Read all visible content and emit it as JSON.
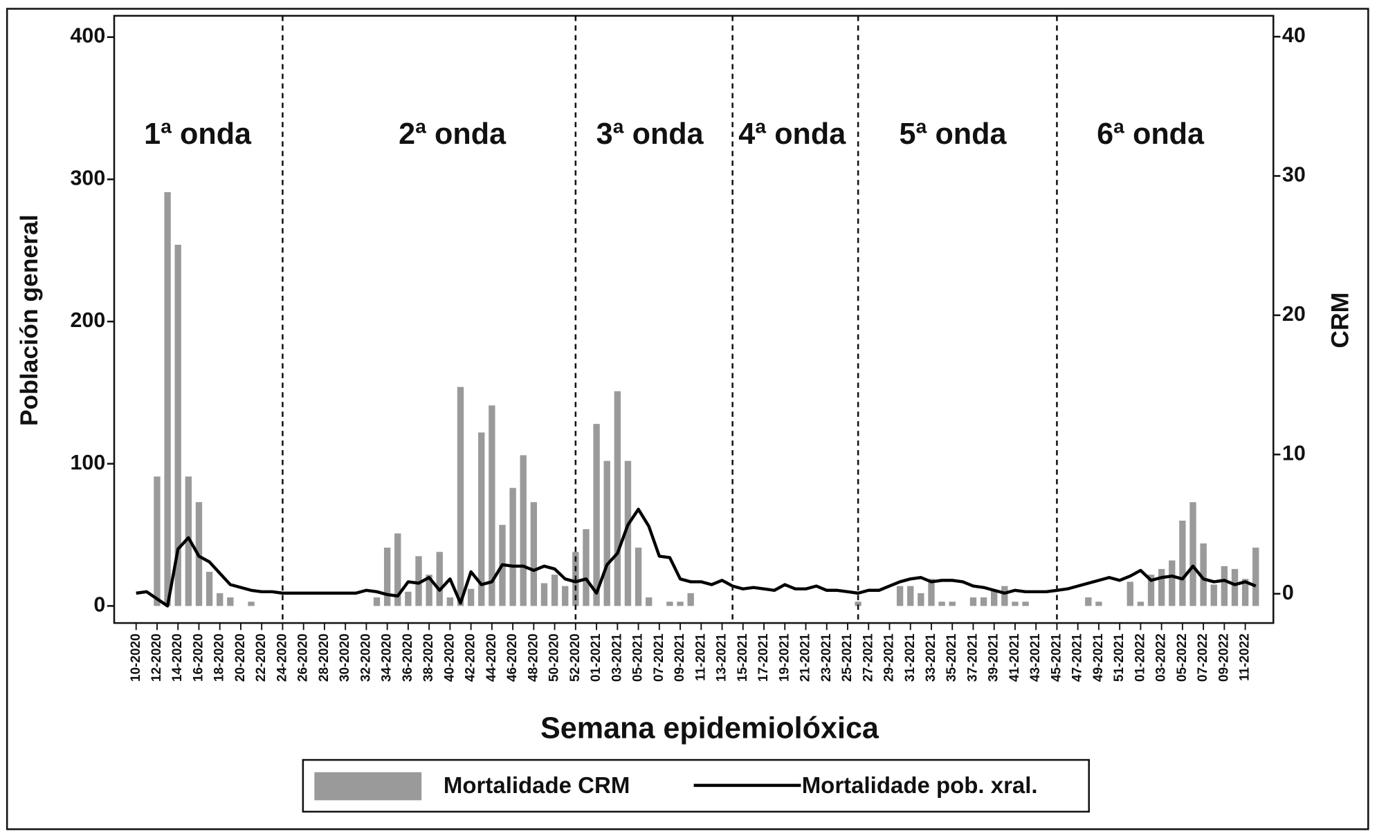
{
  "chart_data": {
    "type": "bar",
    "xlabel": "Semana epidemiolóxica",
    "ylabel": "Población general",
    "y2label": "CRM",
    "categories": [
      "10-2020",
      null,
      "12-2020",
      null,
      "14-2020",
      null,
      "16-2020",
      null,
      "18-2020",
      null,
      "20-2020",
      null,
      "22-2020",
      null,
      "24-2020",
      null,
      "26-2020",
      null,
      "28-2020",
      null,
      "30-2020",
      null,
      "32-2020",
      null,
      "34-2020",
      null,
      "36-2020",
      null,
      "38-2020",
      null,
      "40-2020",
      null,
      "42-2020",
      null,
      "44-2020",
      null,
      "46-2020",
      null,
      "48-2020",
      null,
      "50-2020",
      null,
      "52-2020",
      null,
      "01-2021",
      null,
      "03-2021",
      null,
      "05-2021",
      null,
      "07-2021",
      null,
      "09-2021",
      null,
      "11-2021",
      null,
      "13-2021",
      null,
      "15-2021",
      null,
      "17-2021",
      null,
      "19-2021",
      null,
      "21-2021",
      null,
      "23-2021",
      null,
      "25-2021",
      null,
      "27-2021",
      null,
      "29-2021",
      null,
      "31-2021",
      null,
      "33-2021",
      null,
      "35-2021",
      null,
      "37-2021",
      null,
      "39-2021",
      null,
      "41-2021",
      null,
      "43-2021",
      null,
      "45-2021",
      null,
      "47-2021",
      null,
      "49-2021",
      null,
      "51-2021",
      null,
      "01-2022",
      null,
      "03-2022",
      null,
      "05-2022",
      null,
      "07-2022",
      null,
      "09-2022",
      null,
      "11-2022",
      null
    ],
    "series": [
      {
        "name": "Mortalidade CRM",
        "type": "bar",
        "color": "#9a9a9a",
        "values": [
          0,
          0,
          91,
          291,
          254,
          91,
          73,
          24,
          9,
          6,
          0,
          3,
          0,
          0,
          0,
          0,
          0,
          0,
          0,
          0,
          0,
          0,
          0,
          6,
          41,
          51,
          10,
          35,
          22,
          38,
          6,
          154,
          12,
          122,
          141,
          57,
          83,
          106,
          73,
          16,
          22,
          14,
          38,
          54,
          128,
          102,
          151,
          102,
          41,
          6,
          0,
          3,
          3,
          9,
          0,
          0,
          0,
          0,
          0,
          0,
          0,
          0,
          0,
          0,
          0,
          0,
          0,
          0,
          0,
          3,
          0,
          0,
          0,
          14,
          14,
          9,
          19,
          3,
          3,
          0,
          6,
          6,
          11,
          14,
          3,
          3,
          0,
          0,
          0,
          0,
          0,
          6,
          3,
          0,
          0,
          17,
          3,
          22,
          26,
          32,
          60,
          73,
          44,
          15,
          28,
          26,
          19,
          41
        ]
      },
      {
        "name": "Mortalidade pob. xral.",
        "type": "line",
        "color": "#000000",
        "values": [
          9,
          10,
          5,
          0,
          40,
          48,
          35,
          31,
          23,
          15,
          13,
          11,
          10,
          10,
          9,
          9,
          9,
          9,
          9,
          9,
          9,
          9,
          11,
          10,
          8,
          7,
          17,
          16,
          20,
          11,
          19,
          2,
          24,
          15,
          17,
          29,
          28,
          28,
          25,
          28,
          26,
          19,
          17,
          19,
          9,
          29,
          37,
          57,
          68,
          56,
          35,
          34,
          19,
          17,
          17,
          15,
          18,
          14,
          12,
          13,
          12,
          11,
          15,
          12,
          12,
          14,
          11,
          11,
          10,
          9,
          11,
          11,
          14,
          17,
          19,
          20,
          17,
          18,
          18,
          17,
          14,
          13,
          11,
          9,
          11,
          10,
          10,
          10,
          11,
          12,
          14,
          16,
          18,
          20,
          18,
          21,
          25,
          18,
          20,
          21,
          19,
          28,
          19,
          17,
          18,
          15,
          17,
          14
        ]
      }
    ],
    "ylim": [
      -12,
      415
    ],
    "yticks": [
      0,
      100,
      200,
      300,
      400
    ],
    "y2lim": [
      -2.1,
      41.5
    ],
    "y2ticks": [
      0,
      10,
      20,
      30,
      40
    ],
    "dividers": [
      14,
      42,
      57,
      69,
      88
    ],
    "annotations": [
      "1ª onda",
      "2ª onda",
      "3ª onda",
      "4ª onda",
      "5ª onda",
      "6ª onda"
    ],
    "legend": "bottom"
  }
}
